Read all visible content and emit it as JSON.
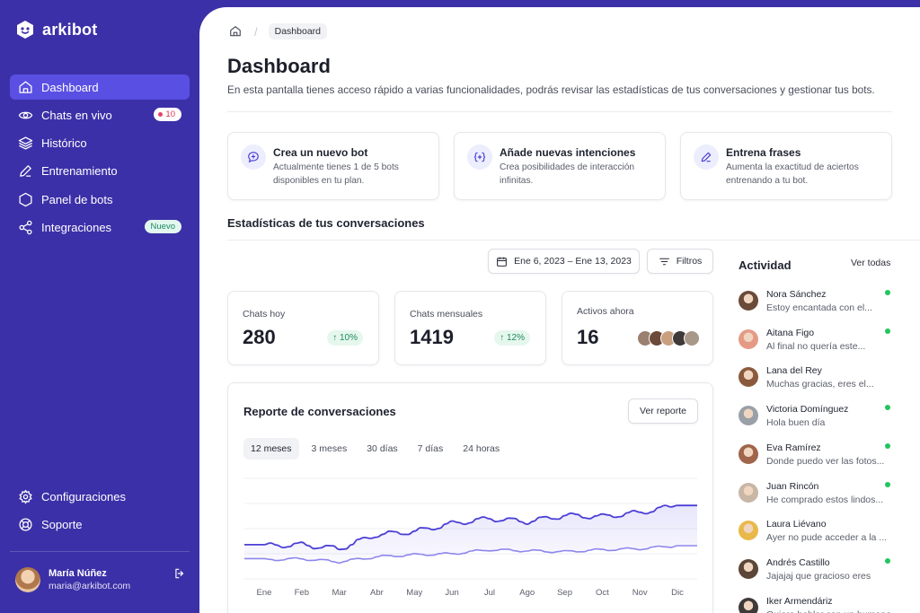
{
  "app": {
    "name": "arkibot"
  },
  "sidebar": {
    "items": [
      {
        "label": "Dashboard",
        "icon": "home-icon"
      },
      {
        "label": "Chats en vivo",
        "icon": "eye-icon",
        "badge": "10"
      },
      {
        "label": "Histórico",
        "icon": "layers-icon"
      },
      {
        "label": "Entrenamiento",
        "icon": "pencil-icon"
      },
      {
        "label": "Panel de bots",
        "icon": "hexagon-icon"
      },
      {
        "label": "Integraciones",
        "icon": "share-icon",
        "badge": "Nuevo"
      }
    ],
    "bottom": [
      {
        "label": "Configuraciones",
        "icon": "gear-icon"
      },
      {
        "label": "Soporte",
        "icon": "lifebuoy-icon"
      }
    ],
    "user": {
      "name": "María Núñez",
      "email": "maria@arkibot.com"
    }
  },
  "breadcrumb": {
    "current": "Dashboard"
  },
  "page": {
    "title": "Dashboard",
    "description": "En esta pantalla tienes acceso rápido a varias funcionalidades, podrás revisar las estadísticas de tus conversaciones y gestionar tus bots."
  },
  "quick_actions": [
    {
      "title": "Crea un nuevo bot",
      "desc": "Actualmente tienes 1 de 5 bots disponibles en tu plan.",
      "icon": "bot-plus-icon"
    },
    {
      "title": "Añade nuevas intenciones",
      "desc": "Crea posibilidades de interacción infinitas.",
      "icon": "bracket-plus-icon"
    },
    {
      "title": "Entrena frases",
      "desc": "Aumenta la exactitud de aciertos entrenando a tu bot.",
      "icon": "pen-icon"
    }
  ],
  "stats_section": {
    "title": "Estadísticas de tus conversaciones",
    "date_range": "Ene 6, 2023 – Ene 13, 2023",
    "filters_label": "Filtros"
  },
  "stats": [
    {
      "label": "Chats hoy",
      "value": "280",
      "trend": "10%"
    },
    {
      "label": "Chats mensuales",
      "value": "1419",
      "trend": "12%"
    },
    {
      "label": "Activos ahora",
      "value": "16"
    }
  ],
  "report": {
    "title": "Reporte de conversaciones",
    "button": "Ver reporte",
    "tabs": [
      "12 meses",
      "3 meses",
      "30 días",
      "7 días",
      "24 horas"
    ],
    "active_tab": 0
  },
  "chart_data": {
    "type": "area",
    "categories": [
      "Ene",
      "Feb",
      "Mar",
      "Abr",
      "May",
      "Jun",
      "Jul",
      "Ago",
      "Sep",
      "Oct",
      "Nov",
      "Dic"
    ],
    "ylim": [
      0,
      100
    ],
    "grid": true,
    "series": [
      {
        "values": [
          33,
          34,
          30,
          44,
          47,
          55,
          60,
          57,
          63,
          62,
          66,
          73
        ],
        "color": "#4c3fd6",
        "fill": true
      },
      {
        "values": [
          19,
          20,
          17,
          22,
          24,
          25,
          29,
          28,
          27,
          29,
          30,
          33
        ],
        "color": "#8d86ec",
        "fill": false
      }
    ]
  },
  "activity": {
    "title": "Actividad",
    "see_all": "Ver todas",
    "items": [
      {
        "name": "Nora Sánchez",
        "message": "Estoy encantada con el...",
        "online": true,
        "color": "#6b4a3a"
      },
      {
        "name": "Aitana Figo",
        "message": "Al final no quería este...",
        "online": true,
        "color": "#e59a86"
      },
      {
        "name": "Lana del Rey",
        "message": "Muchas gracias, eres el...",
        "online": false,
        "color": "#8a5a3c"
      },
      {
        "name": "Victoria Domínguez",
        "message": "Hola buen día",
        "online": true,
        "color": "#9aa0a8"
      },
      {
        "name": "Eva Ramírez",
        "message": "Donde puedo ver las fotos...",
        "online": true,
        "color": "#a0654a"
      },
      {
        "name": "Juan Rincón",
        "message": "He comprado estos lindos...",
        "online": true,
        "color": "#c8b6a6"
      },
      {
        "name": "Laura Liévano",
        "message": "Ayer no pude acceder a la ...",
        "online": false,
        "color": "#e8b84a"
      },
      {
        "name": "Andrés Castillo",
        "message": "Jajajaj que gracioso eres",
        "online": true,
        "color": "#5c4638"
      },
      {
        "name": "Iker Armendáriz",
        "message": "Quiero hablar con un humano",
        "online": false,
        "color": "#3f3a38"
      }
    ]
  },
  "colors": {
    "sidebar": "#3c30a8",
    "active": "#5a4fe3",
    "accent": "#4c3fd6",
    "success": "#22c55e"
  }
}
